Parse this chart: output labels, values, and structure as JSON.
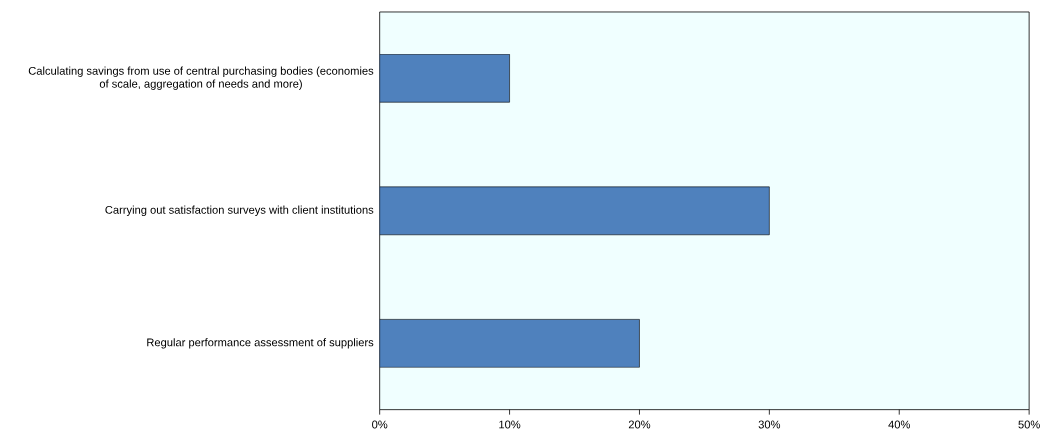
{
  "chart_data": {
    "type": "bar",
    "orientation": "horizontal",
    "categories": [
      "Calculating savings from use of central purchasing bodies (economies of scale, aggregation of needs and more)",
      "Carrying out satisfaction surveys with client institutions",
      "Regular performance assessment of suppliers"
    ],
    "values": [
      10,
      30,
      20
    ],
    "color": "#4f81bd",
    "xlim": [
      0,
      50
    ],
    "xticks": [
      {
        "value": 0,
        "label": "0%"
      },
      {
        "value": 10,
        "label": "10%"
      },
      {
        "value": 20,
        "label": "20%"
      },
      {
        "value": 30,
        "label": "30%"
      },
      {
        "value": 40,
        "label": "40%"
      },
      {
        "value": 50,
        "label": "50%"
      }
    ],
    "grid": false
  }
}
